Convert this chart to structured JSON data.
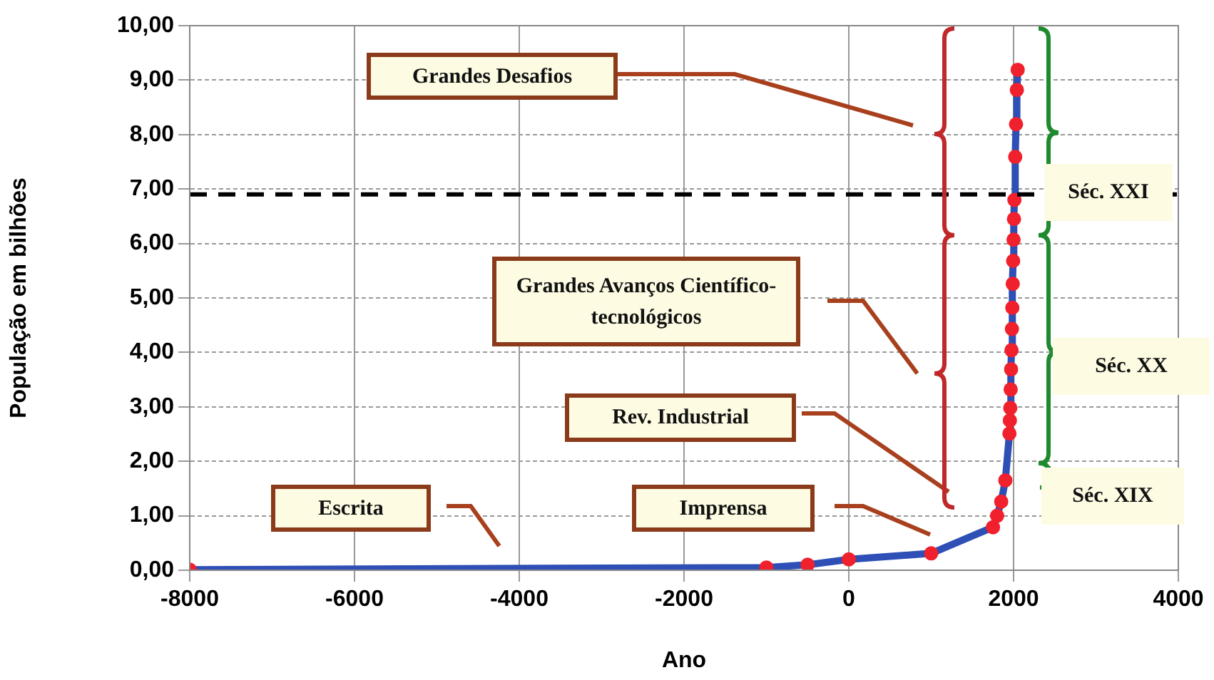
{
  "chart_data": {
    "type": "line",
    "xlabel": "Ano",
    "ylabel": "População em bilhões",
    "x": [
      -8000,
      -1000,
      -500,
      0,
      1000,
      1750,
      1800,
      1850,
      1900,
      1950,
      1955,
      1960,
      1965,
      1970,
      1975,
      1980,
      1985,
      1990,
      1995,
      2000,
      2005,
      2010,
      2020,
      2030,
      2040,
      2050
    ],
    "series": [
      {
        "color": "#2e4fb5",
        "colors": [
          "#f0202c",
          "#f0202c",
          "#f0202c",
          "#f0202c",
          "#f0202c",
          "#f0202c",
          "#f0202c",
          "#f0202c",
          "#f0202c",
          "#f0202c",
          "#f0202c",
          "#f0202c",
          "#f0202c",
          "#f0202c",
          "#f0202c",
          "#f0202c",
          "#f0202c",
          "#f0202c",
          "#f0202c",
          "#f0202c",
          "#f0202c",
          "#f0202c",
          "#f0202c",
          "#f0202c",
          "#f0202c",
          "#f0202c"
        ],
        "values": [
          0.01,
          0.05,
          0.1,
          0.2,
          0.31,
          0.79,
          1.0,
          1.26,
          1.65,
          2.51,
          2.75,
          2.98,
          3.32,
          3.69,
          4.04,
          4.43,
          4.82,
          5.26,
          5.68,
          6.07,
          6.45,
          6.8,
          7.59,
          8.19,
          8.82,
          9.19
        ]
      }
    ],
    "marker": "circle",
    "line_style": "solid",
    "xlim": [
      -8000,
      4000
    ],
    "xticks": [
      -8000,
      -6000,
      -4000,
      -2000,
      0,
      2000,
      4000
    ],
    "ylim": [
      0,
      10
    ],
    "yticks": [
      {
        "value": 0,
        "label": "0,00"
      },
      {
        "value": 1,
        "label": "1,00"
      },
      {
        "value": 2,
        "label": "2,00"
      },
      {
        "value": 3,
        "label": "3,00"
      },
      {
        "value": 4,
        "label": "4,00"
      },
      {
        "value": 5,
        "label": "5,00"
      },
      {
        "value": 6,
        "label": "6,00"
      },
      {
        "value": 7,
        "label": "7,00"
      },
      {
        "value": 8,
        "label": "8,00"
      },
      {
        "value": 9,
        "label": "9,00"
      },
      {
        "value": 10,
        "label": "10,00"
      }
    ],
    "ref_lines": [
      {
        "axis": "y",
        "value": 6.9,
        "color": "#000000",
        "line_style": "dashed"
      }
    ],
    "grid": true,
    "legend": false,
    "annotations": [
      "Grandes Desafios",
      "Grandes Avanços Científico-tecnológicos",
      "Rev. Industrial",
      "Imprensa",
      "Escrita",
      "Séc. XXI",
      "Séc. XX",
      "Séc. XIX"
    ]
  }
}
